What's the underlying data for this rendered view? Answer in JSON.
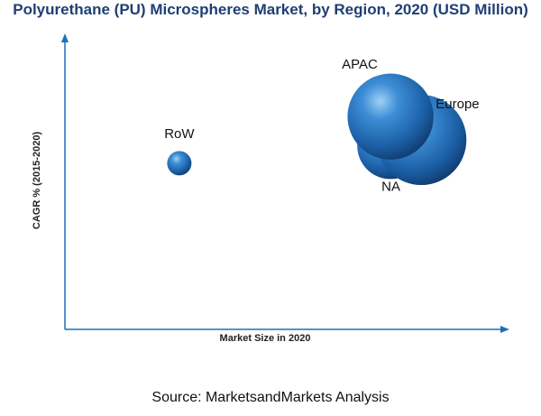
{
  "chart_data": {
    "type": "bubble",
    "title": "Polyurethane (PU) Microspheres Market, by Region, 2020 (USD Million)",
    "xlabel": "Market Size in 2020",
    "ylabel": "CAGR % (2015-2020)",
    "xlim": [
      0,
      100
    ],
    "ylim": [
      0,
      100
    ],
    "grid": false,
    "legend": "none",
    "series": [
      {
        "label": "RoW",
        "x": 26,
        "y": 57,
        "size": 4
      },
      {
        "label": "NA",
        "x": 74,
        "y": 63,
        "size": 30
      },
      {
        "label": "Europe",
        "x": 81,
        "y": 65,
        "size": 55
      },
      {
        "label": "APAC",
        "x": 74,
        "y": 73,
        "size": 50
      }
    ],
    "bubble_color": "#1f6fb8",
    "source": "Source: MarketsandMarkets Analysis"
  }
}
